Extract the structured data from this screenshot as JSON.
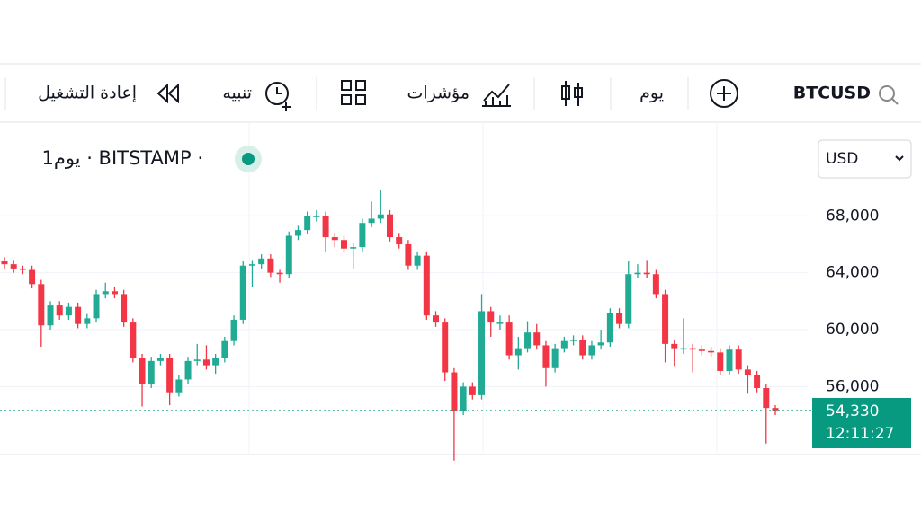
{
  "toolbar": {
    "symbol": "BTCUSD",
    "interval": "يوم",
    "indicators": "مؤشرات",
    "alert": "تنبيه",
    "replay": "إعادة التشغيل"
  },
  "chart_data": {
    "type": "candlestick",
    "legend": "1يوم · BITSTAMP ·",
    "currency": "USD",
    "ylim": [
      51290,
      74520
    ],
    "yticks": [
      {
        "value": 56000,
        "label": "56,000"
      },
      {
        "value": 60000,
        "label": "60,000"
      },
      {
        "value": 64000,
        "label": "64,000"
      },
      {
        "value": 68000,
        "label": "68,000"
      }
    ],
    "up_color": "#22ab94",
    "down_color": "#f23645",
    "open": [
      64800,
      64600,
      64300,
      64200,
      63200,
      60300,
      61700,
      61000,
      61600,
      60400,
      60800,
      62500,
      62700,
      62500,
      60500,
      58000,
      56200,
      57800,
      58000,
      55600,
      56500,
      57800,
      57900,
      57500,
      58000,
      59200,
      60700,
      64500,
      64600,
      65000,
      64000,
      63900,
      66600,
      67000,
      68000,
      68000,
      66500,
      66300,
      65700,
      65800,
      67500,
      67800,
      68100,
      66500,
      66000,
      64500,
      65200,
      61000,
      60500,
      57000,
      54300,
      56000,
      55400,
      61300,
      60500,
      60500,
      58200,
      58700,
      59800,
      58900,
      57300,
      58700,
      59200,
      59300,
      58200,
      58900,
      59100,
      61200,
      60400,
      63900,
      64000,
      63900,
      62500,
      59000,
      58700,
      58700,
      58600,
      58500,
      58400,
      57100,
      58600,
      57200,
      56800,
      55900,
      54500
    ],
    "high": [
      65100,
      64900,
      64500,
      64500,
      63500,
      62000,
      62000,
      61900,
      61900,
      61100,
      62800,
      63300,
      63000,
      62800,
      60800,
      58300,
      58100,
      58300,
      58300,
      56800,
      58100,
      59000,
      58900,
      58300,
      59500,
      61000,
      64800,
      64900,
      65300,
      65300,
      64200,
      66900,
      67300,
      68300,
      68400,
      68300,
      66800,
      66600,
      66100,
      67800,
      69000,
      69800,
      68400,
      66800,
      66300,
      65500,
      65500,
      61300,
      60800,
      57300,
      56300,
      56300,
      62500,
      61600,
      61000,
      61000,
      59500,
      60600,
      60400,
      59200,
      59000,
      59500,
      59600,
      59600,
      59200,
      60000,
      61500,
      61500,
      64800,
      64600,
      64900,
      64200,
      62800,
      59300,
      60800,
      59000,
      58900,
      58800,
      58700,
      58900,
      58900,
      57500,
      57100,
      56200,
      54700
    ],
    "low": [
      64300,
      64000,
      63900,
      62900,
      58800,
      60000,
      60700,
      60700,
      60100,
      60100,
      60500,
      62200,
      62200,
      60200,
      57700,
      54600,
      55900,
      57500,
      54700,
      55300,
      56200,
      57500,
      57200,
      56900,
      57700,
      58900,
      60400,
      63000,
      64300,
      63700,
      63300,
      63600,
      66300,
      66700,
      67600,
      65500,
      65800,
      65400,
      64300,
      65500,
      67200,
      67500,
      66200,
      65700,
      64200,
      64200,
      60700,
      60200,
      56400,
      50800,
      54000,
      55100,
      55100,
      59500,
      60000,
      57900,
      57200,
      58400,
      58600,
      56000,
      57000,
      58400,
      58900,
      57900,
      57900,
      58600,
      58800,
      60100,
      60100,
      63600,
      63600,
      62200,
      57700,
      57400,
      58300,
      57000,
      58200,
      58100,
      56800,
      56800,
      56900,
      55500,
      55600,
      52000,
      54000
    ],
    "close": [
      64600,
      64300,
      64200,
      63200,
      60300,
      61700,
      61000,
      61600,
      60400,
      60800,
      62500,
      62700,
      62500,
      60500,
      58000,
      56200,
      57800,
      58000,
      55600,
      56500,
      57800,
      57900,
      57500,
      58000,
      59200,
      60700,
      64500,
      64600,
      65000,
      64000,
      63900,
      66600,
      67000,
      68000,
      68000,
      66500,
      66300,
      65700,
      65800,
      67500,
      67800,
      68100,
      66500,
      66000,
      64500,
      65200,
      61000,
      60500,
      57000,
      54300,
      56000,
      55400,
      61300,
      60500,
      60500,
      58200,
      58700,
      59800,
      58900,
      57300,
      58700,
      59200,
      59300,
      58200,
      58900,
      59100,
      61200,
      60400,
      63900,
      64000,
      63900,
      62500,
      59000,
      58700,
      58700,
      58600,
      58500,
      58400,
      57100,
      58600,
      57200,
      56800,
      55900,
      54500,
      54330
    ],
    "last_label": "54,330",
    "countdown": "12:11:27"
  }
}
